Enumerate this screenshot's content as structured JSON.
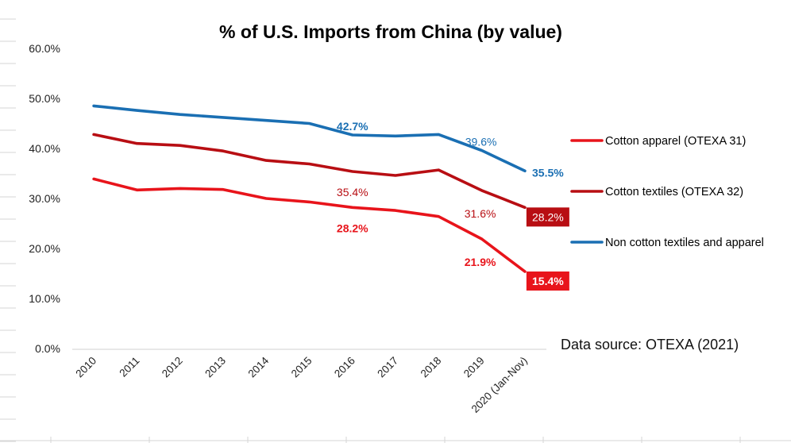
{
  "chart_data": {
    "type": "line",
    "title": "% of U.S. Imports from China (by value)",
    "xlabel": "",
    "ylabel": "",
    "ylim": [
      0,
      60
    ],
    "yticks": [
      "0.0%",
      "10.0%",
      "20.0%",
      "30.0%",
      "40.0%",
      "50.0%",
      "60.0%"
    ],
    "ytick_values": [
      0,
      10,
      20,
      30,
      40,
      50,
      60
    ],
    "grid": false,
    "legend_position": "right",
    "categories": [
      "2010",
      "2011",
      "2012",
      "2013",
      "2014",
      "2015",
      "2016",
      "2017",
      "2018",
      "2019",
      "2020 (Jan-Nov)"
    ],
    "series": [
      {
        "name": "Cotton apparel (OTEXA 31)",
        "color": "#E8141B",
        "values": [
          33.9,
          31.7,
          32.0,
          31.8,
          30.0,
          29.3,
          28.2,
          27.6,
          26.4,
          21.9,
          15.4
        ],
        "labels": [
          {
            "index": 6,
            "text": "28.2%",
            "bold": true,
            "boxed": false
          },
          {
            "index": 9,
            "text": "21.9%",
            "bold": true,
            "boxed": false
          },
          {
            "index": 10,
            "text": "15.4%",
            "bold": true,
            "boxed": true
          }
        ]
      },
      {
        "name": "Cotton textiles (OTEXA 32)",
        "color": "#B80E13",
        "values": [
          42.8,
          41.0,
          40.6,
          39.5,
          37.6,
          36.9,
          35.4,
          34.6,
          35.7,
          31.6,
          28.2
        ],
        "labels": [
          {
            "index": 6,
            "text": "35.4%",
            "bold": false,
            "boxed": false
          },
          {
            "index": 9,
            "text": "31.6%",
            "bold": false,
            "boxed": false
          },
          {
            "index": 10,
            "text": "28.2%",
            "bold": false,
            "boxed": true
          }
        ]
      },
      {
        "name": "Non cotton textiles and apparel",
        "color": "#1A6FB3",
        "values": [
          48.5,
          47.6,
          46.8,
          46.2,
          45.6,
          45.0,
          42.7,
          42.5,
          42.8,
          39.6,
          35.5
        ],
        "labels": [
          {
            "index": 6,
            "text": "42.7%",
            "bold": true,
            "boxed": false
          },
          {
            "index": 9,
            "text": "39.6%",
            "bold": false,
            "boxed": false
          },
          {
            "index": 10,
            "text": "35.5%",
            "bold": true,
            "boxed": false
          }
        ]
      }
    ],
    "annotations": [
      "Data source: OTEXA (2021)"
    ]
  }
}
